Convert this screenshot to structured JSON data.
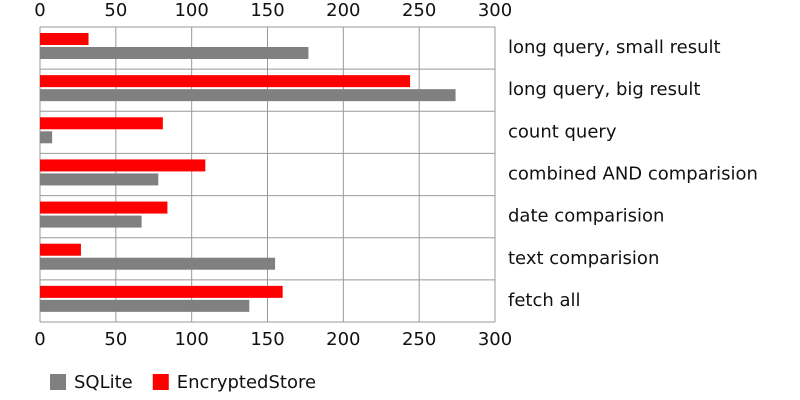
{
  "chart_data": {
    "type": "barh",
    "categories": [
      "long query, small result",
      "long query, big result",
      "count query",
      "combined AND comparision",
      "date comparision",
      "text comparision",
      "fetch all"
    ],
    "series": [
      {
        "name": "SQLite",
        "color": "#808080",
        "values": [
          177,
          274,
          8,
          78,
          67,
          155,
          138
        ]
      },
      {
        "name": "EncryptedStore",
        "color": "#ff0000",
        "values": [
          32,
          244,
          81,
          109,
          84,
          27,
          160
        ]
      }
    ],
    "xlim": [
      0,
      300
    ],
    "xticks": [
      0,
      50,
      100,
      150,
      200,
      250,
      300
    ],
    "grid": true
  }
}
